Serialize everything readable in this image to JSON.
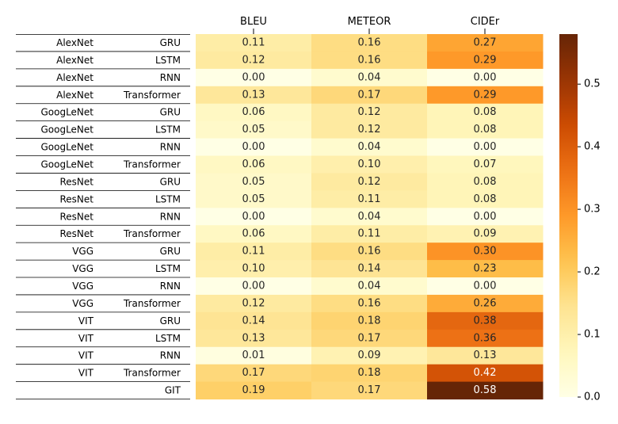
{
  "chart_data": {
    "type": "heatmap",
    "columns": [
      "BLEU",
      "METEOR",
      "CIDEr"
    ],
    "rows": [
      {
        "encoder": "AlexNet",
        "decoder": "GRU",
        "values": [
          0.11,
          0.16,
          0.27
        ],
        "labels": [
          "0.11",
          "0.16",
          "0.27"
        ]
      },
      {
        "encoder": "AlexNet",
        "decoder": "LSTM",
        "values": [
          0.12,
          0.16,
          0.29
        ],
        "labels": [
          "0.12",
          "0.16",
          "0.29"
        ]
      },
      {
        "encoder": "AlexNet",
        "decoder": "RNN",
        "values": [
          0.0,
          0.04,
          0.0
        ],
        "labels": [
          "0.00",
          "0.04",
          "0.00"
        ]
      },
      {
        "encoder": "AlexNet",
        "decoder": "Transformer",
        "values": [
          0.13,
          0.17,
          0.29
        ],
        "labels": [
          "0.13",
          "0.17",
          "0.29"
        ]
      },
      {
        "encoder": "GoogLeNet",
        "decoder": "GRU",
        "values": [
          0.06,
          0.12,
          0.08
        ],
        "labels": [
          "0.06",
          "0.12",
          "0.08"
        ]
      },
      {
        "encoder": "GoogLeNet",
        "decoder": "LSTM",
        "values": [
          0.05,
          0.12,
          0.08
        ],
        "labels": [
          "0.05",
          "0.12",
          "0.08"
        ]
      },
      {
        "encoder": "GoogLeNet",
        "decoder": "RNN",
        "values": [
          0.0,
          0.04,
          0.0
        ],
        "labels": [
          "0.00",
          "0.04",
          "0.00"
        ]
      },
      {
        "encoder": "GoogLeNet",
        "decoder": "Transformer",
        "values": [
          0.06,
          0.1,
          0.07
        ],
        "labels": [
          "0.06",
          "0.10",
          "0.07"
        ]
      },
      {
        "encoder": "ResNet",
        "decoder": "GRU",
        "values": [
          0.05,
          0.12,
          0.08
        ],
        "labels": [
          "0.05",
          "0.12",
          "0.08"
        ]
      },
      {
        "encoder": "ResNet",
        "decoder": "LSTM",
        "values": [
          0.05,
          0.11,
          0.08
        ],
        "labels": [
          "0.05",
          "0.11",
          "0.08"
        ]
      },
      {
        "encoder": "ResNet",
        "decoder": "RNN",
        "values": [
          0.0,
          0.04,
          0.0
        ],
        "labels": [
          "0.00",
          "0.04",
          "0.00"
        ]
      },
      {
        "encoder": "ResNet",
        "decoder": "Transformer",
        "values": [
          0.06,
          0.11,
          0.09
        ],
        "labels": [
          "0.06",
          "0.11",
          "0.09"
        ]
      },
      {
        "encoder": "VGG",
        "decoder": "GRU",
        "values": [
          0.11,
          0.16,
          0.3
        ],
        "labels": [
          "0.11",
          "0.16",
          "0.30"
        ]
      },
      {
        "encoder": "VGG",
        "decoder": "LSTM",
        "values": [
          0.1,
          0.14,
          0.23
        ],
        "labels": [
          "0.10",
          "0.14",
          "0.23"
        ]
      },
      {
        "encoder": "VGG",
        "decoder": "RNN",
        "values": [
          0.0,
          0.04,
          0.0
        ],
        "labels": [
          "0.00",
          "0.04",
          "0.00"
        ]
      },
      {
        "encoder": "VGG",
        "decoder": "Transformer",
        "values": [
          0.12,
          0.16,
          0.26
        ],
        "labels": [
          "0.12",
          "0.16",
          "0.26"
        ]
      },
      {
        "encoder": "VIT",
        "decoder": "GRU",
        "values": [
          0.14,
          0.18,
          0.38
        ],
        "labels": [
          "0.14",
          "0.18",
          "0.38"
        ]
      },
      {
        "encoder": "VIT",
        "decoder": "LSTM",
        "values": [
          0.13,
          0.17,
          0.36
        ],
        "labels": [
          "0.13",
          "0.17",
          "0.36"
        ]
      },
      {
        "encoder": "VIT",
        "decoder": "RNN",
        "values": [
          0.01,
          0.09,
          0.13
        ],
        "labels": [
          "0.01",
          "0.09",
          "0.13"
        ]
      },
      {
        "encoder": "VIT",
        "decoder": "Transformer",
        "values": [
          0.17,
          0.18,
          0.42
        ],
        "labels": [
          "0.17",
          "0.18",
          "0.42"
        ]
      },
      {
        "encoder": "",
        "decoder": "GIT",
        "values": [
          0.19,
          0.17,
          0.58
        ],
        "labels": [
          "0.19",
          "0.17",
          "0.58"
        ]
      }
    ],
    "colorbar": {
      "min": 0.0,
      "max": 0.58,
      "ticks": [
        0.0,
        0.1,
        0.2,
        0.3,
        0.4,
        0.5
      ],
      "tick_labels": [
        "0.0",
        "0.1",
        "0.2",
        "0.3",
        "0.4",
        "0.5"
      ],
      "colormap": "YlOrBr",
      "placement": "right"
    }
  }
}
